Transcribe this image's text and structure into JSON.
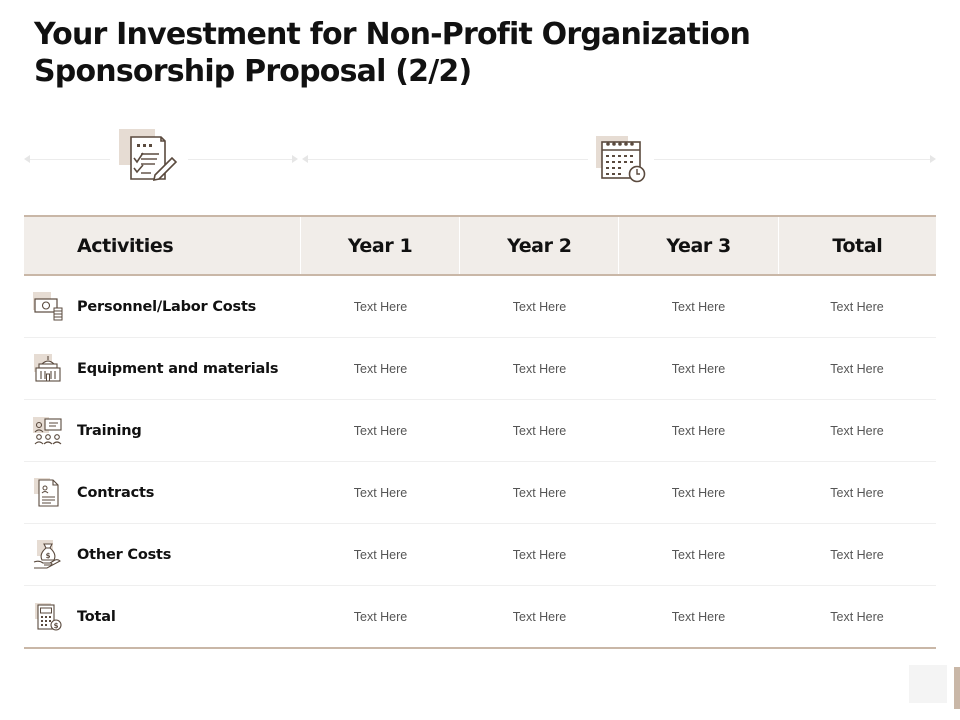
{
  "title": {
    "line1": "Your Investment for Non-Profit Organization",
    "line2": "Sponsorship Proposal  (2/2)"
  },
  "top_icons": [
    "checklist-pen-icon",
    "calendar-clock-icon"
  ],
  "table": {
    "headers": [
      "Activities",
      "Year 1",
      "Year 2",
      "Year 3",
      "Total"
    ],
    "rows": [
      {
        "icon": "money-coins-icon",
        "label": "Personnel/Labor Costs",
        "values": [
          "Text Here",
          "Text Here",
          "Text Here",
          "Text Here"
        ]
      },
      {
        "icon": "building-icon",
        "label": "Equipment and materials",
        "values": [
          "Text Here",
          "Text Here",
          "Text Here",
          "Text Here"
        ]
      },
      {
        "icon": "training-group-icon",
        "label": "Training",
        "values": [
          "Text Here",
          "Text Here",
          "Text Here",
          "Text Here"
        ]
      },
      {
        "icon": "contract-document-icon",
        "label": "Contracts",
        "values": [
          "Text Here",
          "Text Here",
          "Text Here",
          "Text Here"
        ]
      },
      {
        "icon": "money-bag-hand-icon",
        "label": "Other Costs",
        "values": [
          "Text Here",
          "Text Here",
          "Text Here",
          "Text Here"
        ]
      },
      {
        "icon": "calculator-icon",
        "label": "Total",
        "values": [
          "Text Here",
          "Text Here",
          "Text Here",
          "Text Here"
        ]
      }
    ]
  },
  "colors": {
    "accent": "#c9b7a7",
    "header_bg": "#f1ede9",
    "icon_bg": "#e6dcd3",
    "icon_stroke": "#5a4a3e"
  }
}
